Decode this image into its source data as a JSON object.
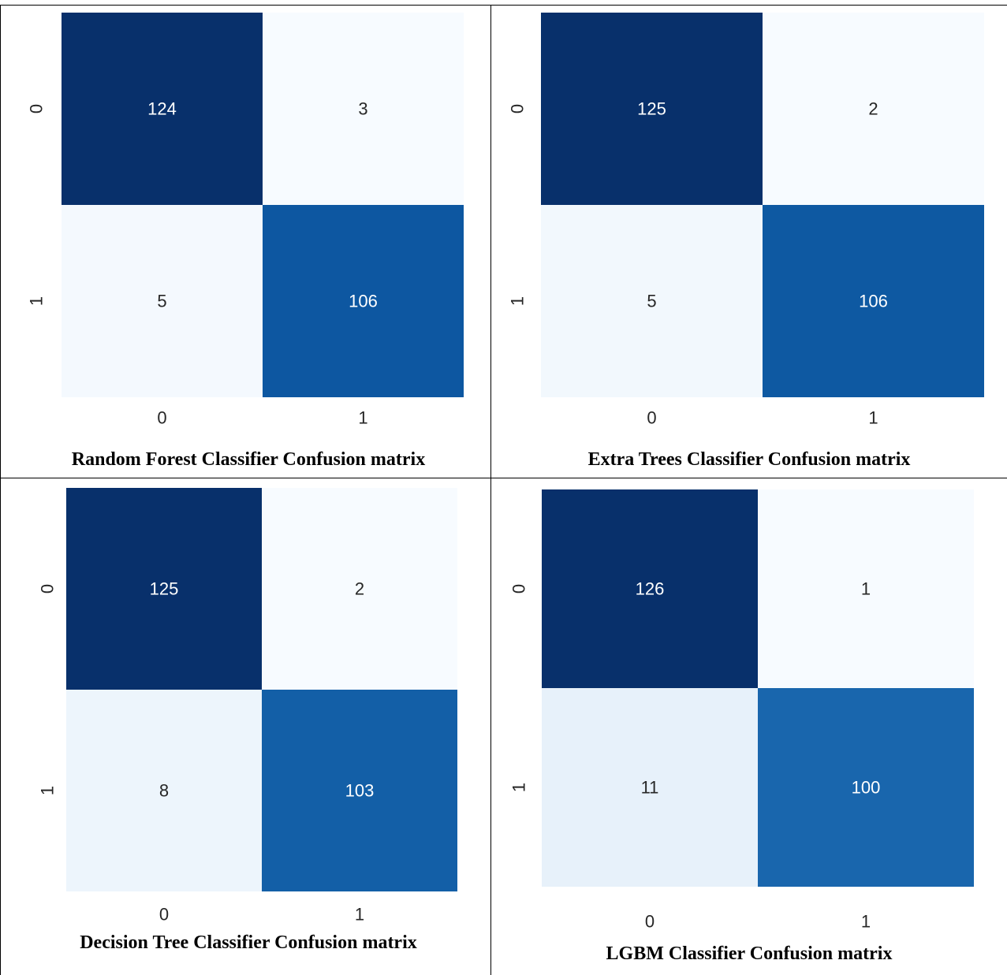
{
  "chart_data": [
    {
      "type": "heatmap",
      "title": "Random Forest Classifier Confusion matrix",
      "x_tick_labels": [
        "0",
        "1"
      ],
      "y_tick_labels": [
        "0",
        "1"
      ],
      "values": [
        [
          124,
          3
        ],
        [
          5,
          106
        ]
      ],
      "colormap": "Blues",
      "colorbar": false
    },
    {
      "type": "heatmap",
      "title": "Extra Trees Classifier Confusion matrix",
      "x_tick_labels": [
        "0",
        "1"
      ],
      "y_tick_labels": [
        "0",
        "1"
      ],
      "values": [
        [
          125,
          2
        ],
        [
          5,
          106
        ]
      ],
      "colormap": "Blues",
      "colorbar": false
    },
    {
      "type": "heatmap",
      "title": "Decision Tree Classifier Confusion matrix",
      "x_tick_labels": [
        "0",
        "1"
      ],
      "y_tick_labels": [
        "0",
        "1"
      ],
      "values": [
        [
          125,
          2
        ],
        [
          8,
          103
        ]
      ],
      "colormap": "Blues",
      "colorbar": false
    },
    {
      "type": "heatmap",
      "title": "LGBM Classifier Confusion matrix",
      "x_tick_labels": [
        "0",
        "1"
      ],
      "y_tick_labels": [
        "0",
        "1"
      ],
      "values": [
        [
          126,
          1
        ],
        [
          11,
          100
        ]
      ],
      "colormap": "Blues",
      "colorbar": false
    }
  ]
}
